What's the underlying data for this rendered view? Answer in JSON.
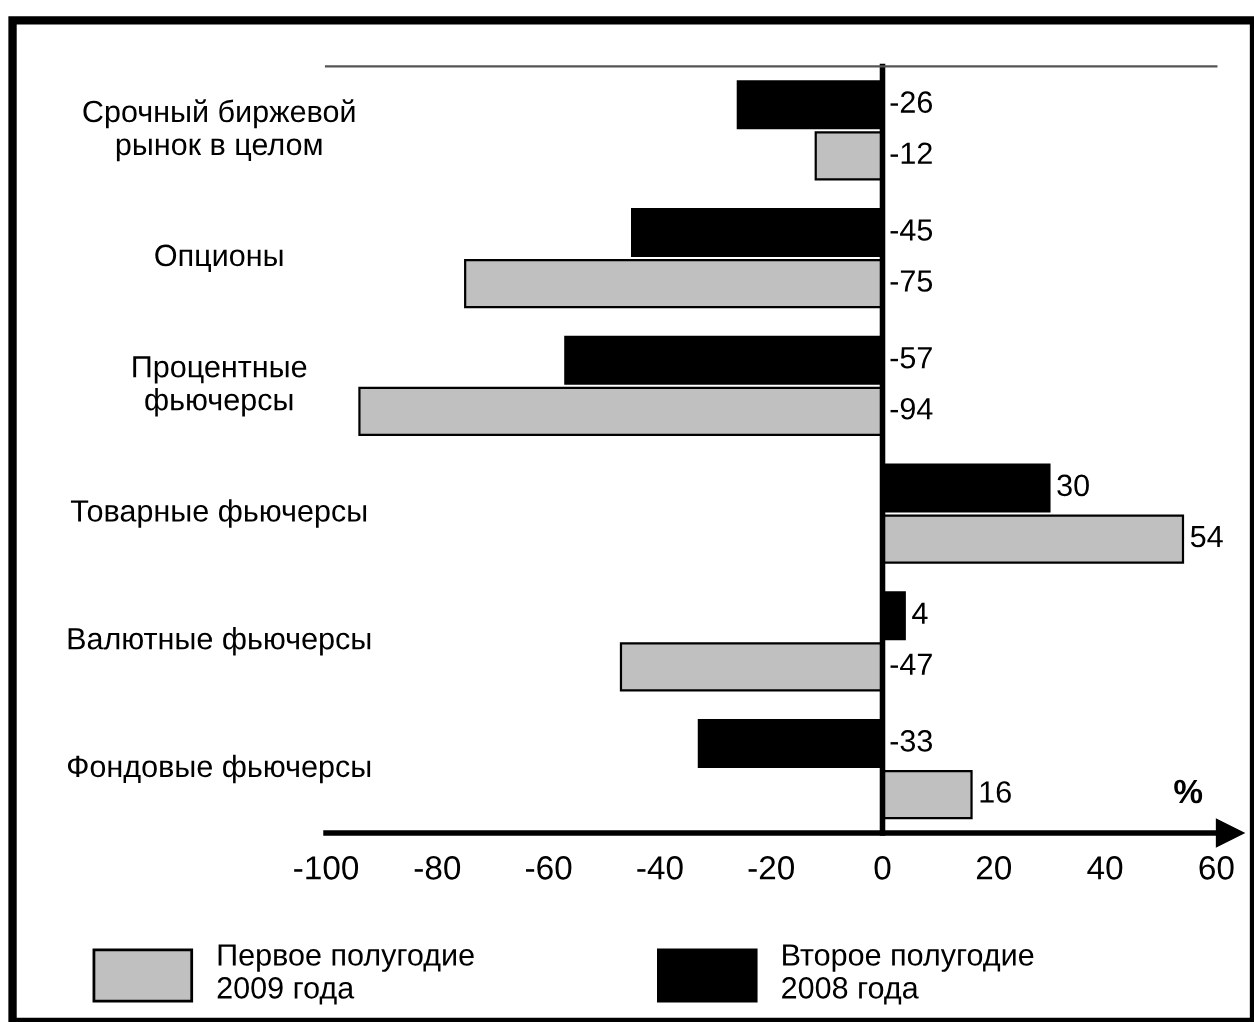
{
  "chart_data": {
    "type": "bar",
    "orientation": "horizontal",
    "xlabel": "%",
    "categories": [
      "Срочный биржевой\nрынок в целом",
      "Опционы",
      "Процентные\nфьючерсы",
      "Товарные фьючерсы",
      "Валютные фьючерсы",
      "Фондовые фьючерсы"
    ],
    "series": [
      {
        "name": "Первое полугодие\n2009 года",
        "color": "#c0c0c0",
        "values": [
          -12,
          -75,
          -94,
          54,
          -47,
          16
        ]
      },
      {
        "name": "Второе полугодие\n2008 года",
        "color": "#000000",
        "values": [
          -26,
          -45,
          -57,
          30,
          4,
          -33
        ]
      }
    ],
    "xlim": [
      -100,
      60
    ],
    "xticks": [
      -100,
      -80,
      -60,
      -40,
      -20,
      0,
      20,
      40,
      60
    ],
    "data_labels": true,
    "legend": "bottom"
  }
}
